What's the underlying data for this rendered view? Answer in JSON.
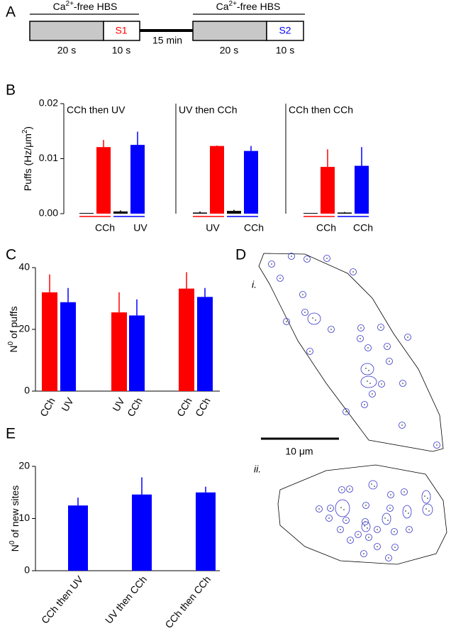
{
  "panels": {
    "a": "A",
    "b": "B",
    "c": "C",
    "d": "D",
    "e": "E"
  },
  "protocol": {
    "solution_labels": [
      {
        "base": "Ca",
        "sup": "2+",
        "rest": "-free HBS"
      },
      {
        "base": "Ca",
        "sup": "2+",
        "rest": "-free HBS"
      }
    ],
    "stimuli": [
      "S1",
      "S2"
    ],
    "durations": [
      "20 s",
      "10 s",
      "20 s",
      "10 s"
    ],
    "interval": "15 min"
  },
  "chart_data": [
    {
      "type": "bar",
      "title": "CCh then UV",
      "ylabel": {
        "base": "Puffs (Hz/μm",
        "sup": "2",
        "rest": ")"
      },
      "ylim": [
        0,
        0.02
      ],
      "yticks": [
        {
          "value": 0,
          "label": "0.00"
        },
        {
          "value": 0.01,
          "label": "0.01"
        },
        {
          "value": 0.02,
          "label": "0.02"
        }
      ],
      "values": [
        5e-05,
        0.0121,
        0.0004,
        0.0125
      ],
      "errors": [
        0,
        0.0013,
        0.0002,
        0.0024
      ],
      "colors": [
        "#000000",
        "#ff0000",
        "#000000",
        "#0000ff"
      ],
      "group_labels": [
        "CCh",
        "UV"
      ],
      "group_colors": [
        "#ff0000",
        "#0000ff"
      ]
    },
    {
      "type": "bar",
      "title": "UV then CCh",
      "ylim": [
        0,
        0.02
      ],
      "values": [
        0.0002,
        0.0123,
        0.0005,
        0.0114
      ],
      "errors": [
        0.0002,
        0.0001,
        0.0002,
        0.0009
      ],
      "colors": [
        "#000000",
        "#ff0000",
        "#000000",
        "#0000ff"
      ],
      "group_labels": [
        "UV",
        "CCh"
      ],
      "group_colors": [
        "#ff0000",
        "#0000ff"
      ]
    },
    {
      "type": "bar",
      "title": "CCh then CCh",
      "ylim": [
        0,
        0.02
      ],
      "values": [
        0.0001,
        0.0085,
        0.0002,
        0.0087
      ],
      "errors": [
        0,
        0.0032,
        0.0001,
        0.0034
      ],
      "colors": [
        "#000000",
        "#ff0000",
        "#000000",
        "#0000ff"
      ],
      "group_labels": [
        "CCh",
        "CCh"
      ],
      "group_colors": [
        "#ff0000",
        "#0000ff"
      ]
    },
    {
      "type": "bar",
      "ylabel": {
        "base": "N",
        "sup": "0",
        "rest": " of puffs"
      },
      "categories": [
        "CCh",
        "UV",
        "UV",
        "CCh",
        "CCh",
        "CCh"
      ],
      "values": [
        32,
        28.8,
        25.5,
        24.5,
        33.2,
        30.5
      ],
      "errors": [
        5.8,
        4.6,
        6.5,
        5.2,
        5.3,
        2.9
      ],
      "colors": [
        "#ff0000",
        "#0000ff",
        "#ff0000",
        "#0000ff",
        "#ff0000",
        "#0000ff"
      ],
      "ylim": [
        0,
        40
      ],
      "yticks": [
        0,
        20,
        40
      ]
    },
    {
      "type": "bar",
      "ylabel": {
        "base": "N",
        "sup": "0",
        "rest": " of new sites"
      },
      "categories": [
        "CCh then UV",
        "UV then CCh",
        "CCh then CCh"
      ],
      "values": [
        12.5,
        14.6,
        15
      ],
      "errors": [
        1.5,
        3.3,
        1.1
      ],
      "color": "#0000ff",
      "ylim": [
        0,
        20
      ],
      "yticks": [
        0,
        10,
        20
      ]
    }
  ],
  "cell_map": {
    "views": [
      "i.",
      "ii."
    ],
    "scale_bar": "10 μm"
  }
}
